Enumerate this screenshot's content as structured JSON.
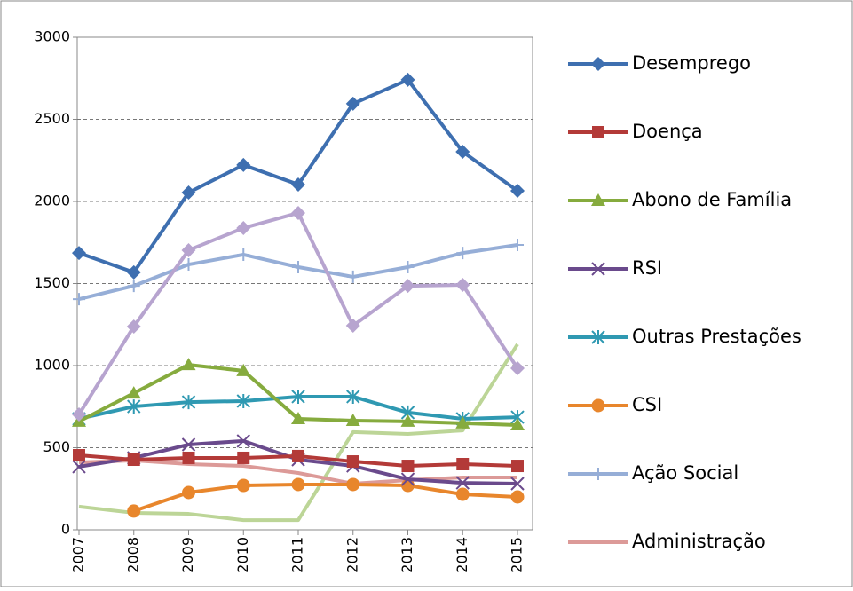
{
  "chart_data": {
    "type": "line",
    "x": [
      "2007",
      "2008",
      "2009",
      "2010",
      "2011",
      "2012",
      "2013",
      "2014",
      "2015"
    ],
    "ylim": [
      0,
      3000
    ],
    "yticks": [
      0,
      500,
      1000,
      1500,
      2000,
      2500,
      3000
    ],
    "grid": true,
    "legend": "right",
    "series": [
      {
        "name": "Desemprego",
        "color": "#3e6fb0",
        "marker": "diamond",
        "values": [
          1686,
          1568,
          2054,
          2222,
          2103,
          2595,
          2741,
          2303,
          2065
        ]
      },
      {
        "name": "Doença",
        "color": "#b33a38",
        "marker": "square",
        "values": [
          454,
          427,
          438,
          438,
          449,
          416,
          389,
          400,
          389
        ]
      },
      {
        "name": "Abono de Família",
        "color": "#86ab3e",
        "marker": "triangle",
        "values": [
          660,
          832,
          1005,
          968,
          676,
          665,
          660,
          649,
          638
        ]
      },
      {
        "name": "RSI",
        "color": "#6a4a8c",
        "marker": "x",
        "values": [
          384,
          438,
          519,
          541,
          427,
          389,
          308,
          286,
          281
        ]
      },
      {
        "name": "Outras Prestações",
        "color": "#2f99b2",
        "marker": "star",
        "values": [
          676,
          751,
          778,
          784,
          811,
          811,
          714,
          676,
          686
        ]
      },
      {
        "name": "CSI",
        "color": "#e8862c",
        "marker": "circle",
        "values": [
          null,
          114,
          227,
          270,
          276,
          276,
          270,
          216,
          200
        ]
      },
      {
        "name": "Ação Social",
        "color": "#96aed7",
        "marker": "plus",
        "values": [
          1405,
          1486,
          1616,
          1676,
          1600,
          1541,
          1600,
          1686,
          1735
        ]
      },
      {
        "name": "Administração",
        "color": "#dc9a98",
        "marker": "none",
        "values": [
          411,
          422,
          400,
          389,
          346,
          281,
          303,
          319,
          319
        ]
      },
      {
        "color": "#b7a4cf",
        "marker": "diamond",
        "values": [
          703,
          1238,
          1703,
          1838,
          1930,
          1243,
          1486,
          1492,
          984
        ]
      },
      {
        "color": "#bcd597",
        "marker": "none",
        "values": [
          141,
          103,
          97,
          59,
          59,
          595,
          584,
          605,
          1130
        ]
      }
    ]
  }
}
